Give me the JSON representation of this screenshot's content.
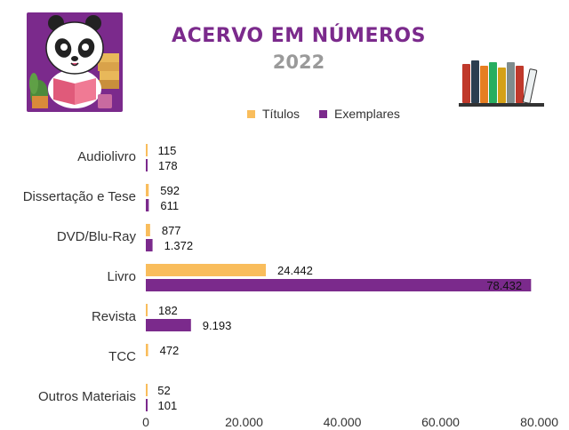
{
  "title": "ACERVO EM NÚMEROS",
  "subtitle": "2022",
  "colors": {
    "titulos": "#f9bd5c",
    "exemplares": "#7b2a8c",
    "title": "#7b2a8c",
    "subtitle": "#9a9a9a"
  },
  "icons": {
    "mascot": "panda-reading-icon",
    "books": "books-shelf-icon"
  },
  "chart_data": {
    "type": "bar",
    "orientation": "horizontal",
    "categories": [
      "Audiolivro",
      "Dissertação e Tese",
      "DVD/Blu-Ray",
      "Livro",
      "Revista",
      "TCC",
      "Outros Materiais"
    ],
    "series": [
      {
        "name": "Títulos",
        "values": [
          115,
          592,
          877,
          24442,
          182,
          472,
          52
        ],
        "labels": [
          "115",
          "592",
          "877",
          "24.442",
          "182",
          "472",
          "52"
        ]
      },
      {
        "name": "Exemplares",
        "values": [
          178,
          611,
          1372,
          78432,
          9193,
          null,
          101
        ],
        "labels": [
          "178",
          "611",
          "1.372",
          "78.432",
          "9.193",
          "",
          "101"
        ]
      }
    ],
    "xlim": [
      0,
      80000
    ],
    "xticks": [
      0,
      20000,
      40000,
      60000,
      80000
    ],
    "xtick_labels": [
      "0",
      "20.000",
      "40.000",
      "60.000",
      "80.000"
    ],
    "legend_position": "top",
    "grid": false
  }
}
